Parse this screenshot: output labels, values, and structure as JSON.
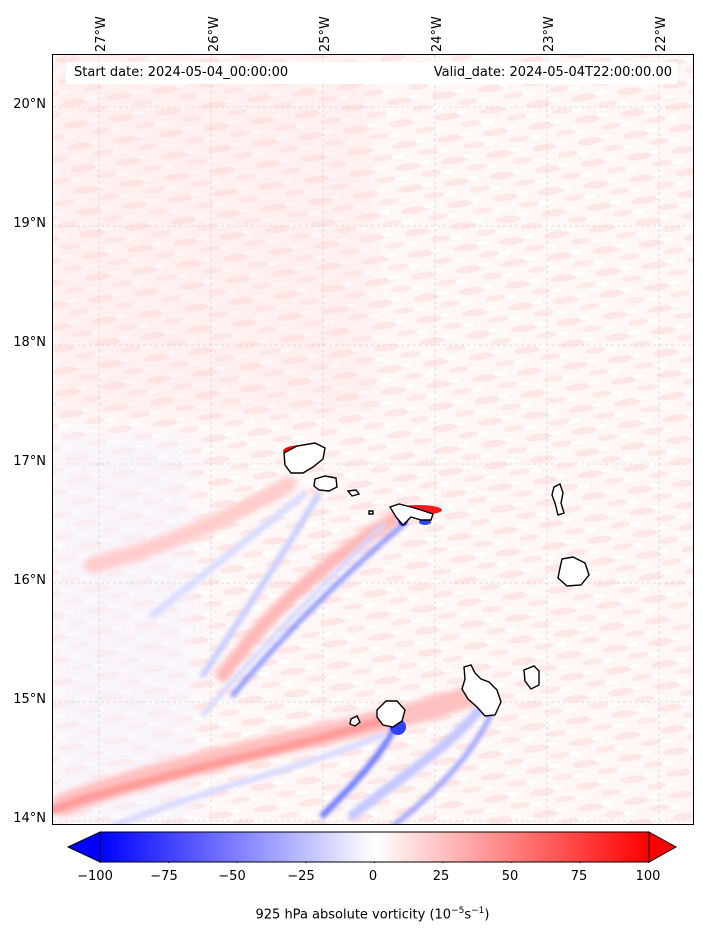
{
  "map": {
    "start_label": "Start date: 2024-05-04_00:00:00",
    "valid_label": "Valid_date: 2024-05-04T22:00:00.00",
    "lon_ticks": [
      "27°W",
      "26°W",
      "25°W",
      "24°W",
      "23°W",
      "22°W"
    ],
    "lat_ticks": [
      "20°N",
      "19°N",
      "18°N",
      "17°N",
      "16°N",
      "15°N",
      "14°N"
    ],
    "extent": {
      "lon_min": -27.4,
      "lon_max": -21.85,
      "lat_min": 13.95,
      "lat_max": 20.45
    },
    "field": "925 hPa absolute vorticity",
    "islands": [
      "Santo Antão",
      "São Vicente",
      "Santa Luzia",
      "São Nicolau",
      "Sal",
      "Boa Vista",
      "Fogo",
      "Brava",
      "Santiago",
      "Maio"
    ]
  },
  "colorbar": {
    "ticks": [
      "−100",
      "−75",
      "−50",
      "−25",
      "0",
      "25",
      "50",
      "75",
      "100"
    ],
    "tick_values": [
      -100,
      -75,
      -50,
      -25,
      0,
      25,
      50,
      75,
      100
    ],
    "label_main": "925 hPa absolute vorticity (10",
    "label_exp1": "−5",
    "label_mid": "s",
    "label_exp2": "−1",
    "label_end": ")",
    "range": [
      -100,
      100
    ],
    "colormap": "bwr",
    "color_neg": "#0000ff",
    "color_zero": "#ffffff",
    "color_pos": "#ff0000"
  }
}
